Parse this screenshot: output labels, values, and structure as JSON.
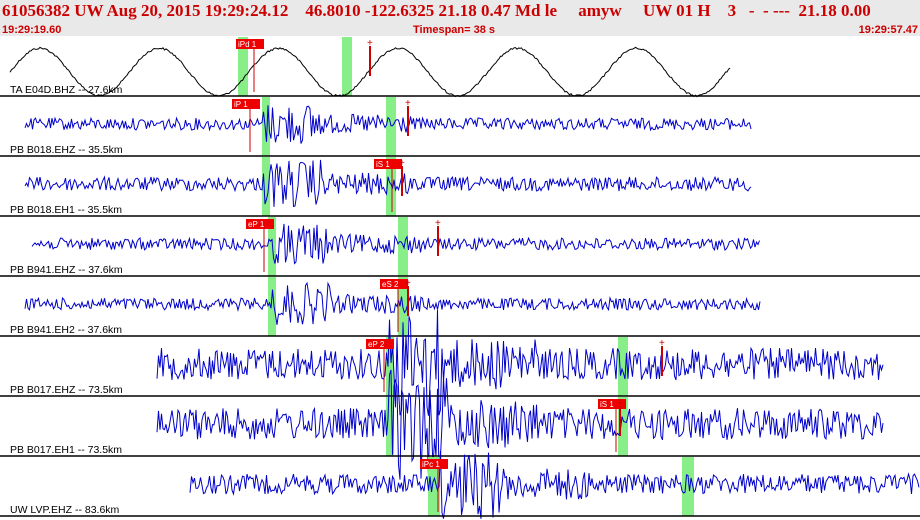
{
  "header": {
    "title": "61056382 UW Aug 20, 2015 19:29:24.12    46.8010 -122.6325 21.18 0.47 Md le     amyw     UW 01 H    3   -  - ---  21.18 0.00",
    "start_time": "19:29:19.60",
    "timespan": "Timespan=  38 s",
    "end_time": "19:29:57.47"
  },
  "colors": {
    "title": "#cc0000",
    "trace": "#0000cc",
    "first_trace": "#000000",
    "pick_box": "#ee0000",
    "window_band": "#88ee88",
    "separator": "#000000"
  },
  "traces": [
    {
      "label": "TA E04D.BHZ -- 27.6km",
      "kind": "smooth",
      "picks": [
        {
          "text": "iPd 1"
        }
      ]
    },
    {
      "label": "PB B018.EHZ -- 35.5km",
      "kind": "noise",
      "picks": [
        {
          "text": "iP 1"
        }
      ]
    },
    {
      "label": "PB B018.EH1 -- 35.5km",
      "kind": "noise",
      "picks": [
        {
          "text": "iS 1"
        }
      ]
    },
    {
      "label": "PB B941.EHZ -- 37.6km",
      "kind": "noise",
      "picks": [
        {
          "text": "eP 1"
        }
      ]
    },
    {
      "label": "PB B941.EH2 -- 37.6km",
      "kind": "noise",
      "picks": [
        {
          "text": "eS 2"
        }
      ]
    },
    {
      "label": "PB B017.EHZ -- 73.5km",
      "kind": "noisy",
      "picks": [
        {
          "text": "eP 2"
        }
      ]
    },
    {
      "label": "PB B017.EH1 -- 73.5km",
      "kind": "noisy",
      "picks": [
        {
          "text": "iS 1"
        }
      ]
    },
    {
      "label": "UW LVP.EHZ -- 83.6km",
      "kind": "noise",
      "picks": [
        {
          "text": "iPc 1"
        }
      ]
    }
  ]
}
